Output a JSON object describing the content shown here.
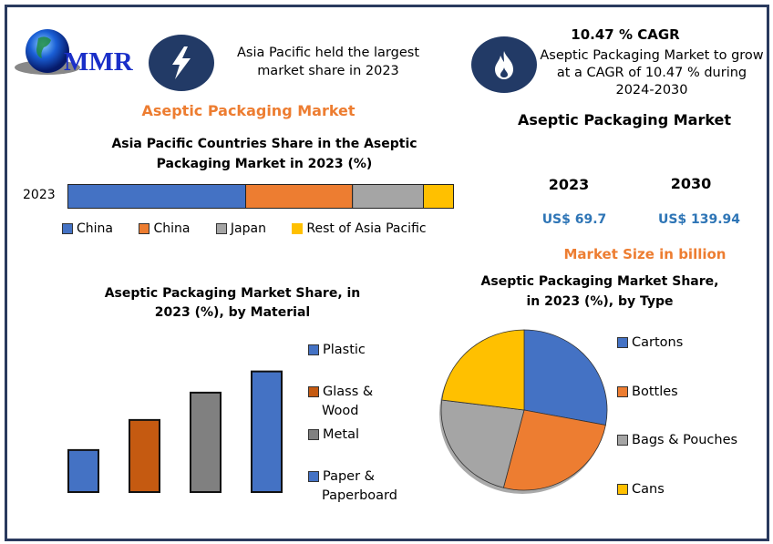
{
  "brand": {
    "logo_text": "MMR"
  },
  "highlight_left": {
    "icon": "lightning-bolt-icon",
    "text": "Asia Pacific held the largest market share in 2023"
  },
  "highlight_right": {
    "icon": "flame-icon",
    "title": "10.47 % CAGR",
    "text": "Aseptic Packaging Market to grow at a CAGR of 10.47 % during 2024-2030"
  },
  "left_title": "Aseptic Packaging Market",
  "market_size": {
    "title": "Aseptic Packaging Market",
    "years": [
      "2023",
      "2030"
    ],
    "values": [
      "US$ 69.7",
      "US$ 139.94"
    ],
    "caption": "Market Size in billion"
  },
  "colors": {
    "blue": "#4472c4",
    "orange": "#ed7d31",
    "gray": "#a5a5a5",
    "yellow": "#ffc000",
    "dark_orange": "#c55a11",
    "dark_gray": "#808080"
  },
  "chart_data": [
    {
      "type": "bar",
      "orientation": "horizontal-stacked",
      "title": "Asia Pacific Countries Share in the  Aseptic Packaging Market in 2023 (%)",
      "categories": [
        "2023"
      ],
      "series": [
        {
          "name": "China",
          "values": [
            46.1
          ],
          "color": "#4472c4"
        },
        {
          "name": "China",
          "values": [
            27.7
          ],
          "color": "#ed7d31"
        },
        {
          "name": "Japan",
          "values": [
            18.4
          ],
          "color": "#a5a5a5"
        },
        {
          "name": "Rest of Asia Pacific",
          "values": [
            7.8
          ],
          "color": "#ffc000"
        }
      ],
      "xlim": [
        0,
        100
      ],
      "legend": "bottom",
      "grid": false
    },
    {
      "type": "bar",
      "title": "Aseptic Packaging  Market Share, in 2023 (%), by Material",
      "categories": [
        "Plastic",
        "Glass & Wood",
        "Metal",
        "Paper & Paperboard"
      ],
      "values": [
        12.3,
        21.1,
        29.1,
        35.3
      ],
      "colors": [
        "#4472c4",
        "#c55a11",
        "#808080",
        "#4472c4"
      ],
      "legend_labels": [
        "Plastic",
        "Glass &\nWood",
        "Metal",
        "Paper &\nPaperboard"
      ],
      "legend": "right",
      "ylim": [
        0,
        40
      ],
      "grid": false
    },
    {
      "type": "pie",
      "title": "Aseptic Packaging  Market Share, in 2023 (%), by Type",
      "labels": [
        "Cartons",
        "Bottles",
        "Bags & Pouches",
        "Cans"
      ],
      "values": [
        28,
        26,
        23,
        23
      ],
      "colors": [
        "#4472c4",
        "#ed7d31",
        "#a5a5a5",
        "#ffc000"
      ],
      "legend": "right"
    }
  ]
}
